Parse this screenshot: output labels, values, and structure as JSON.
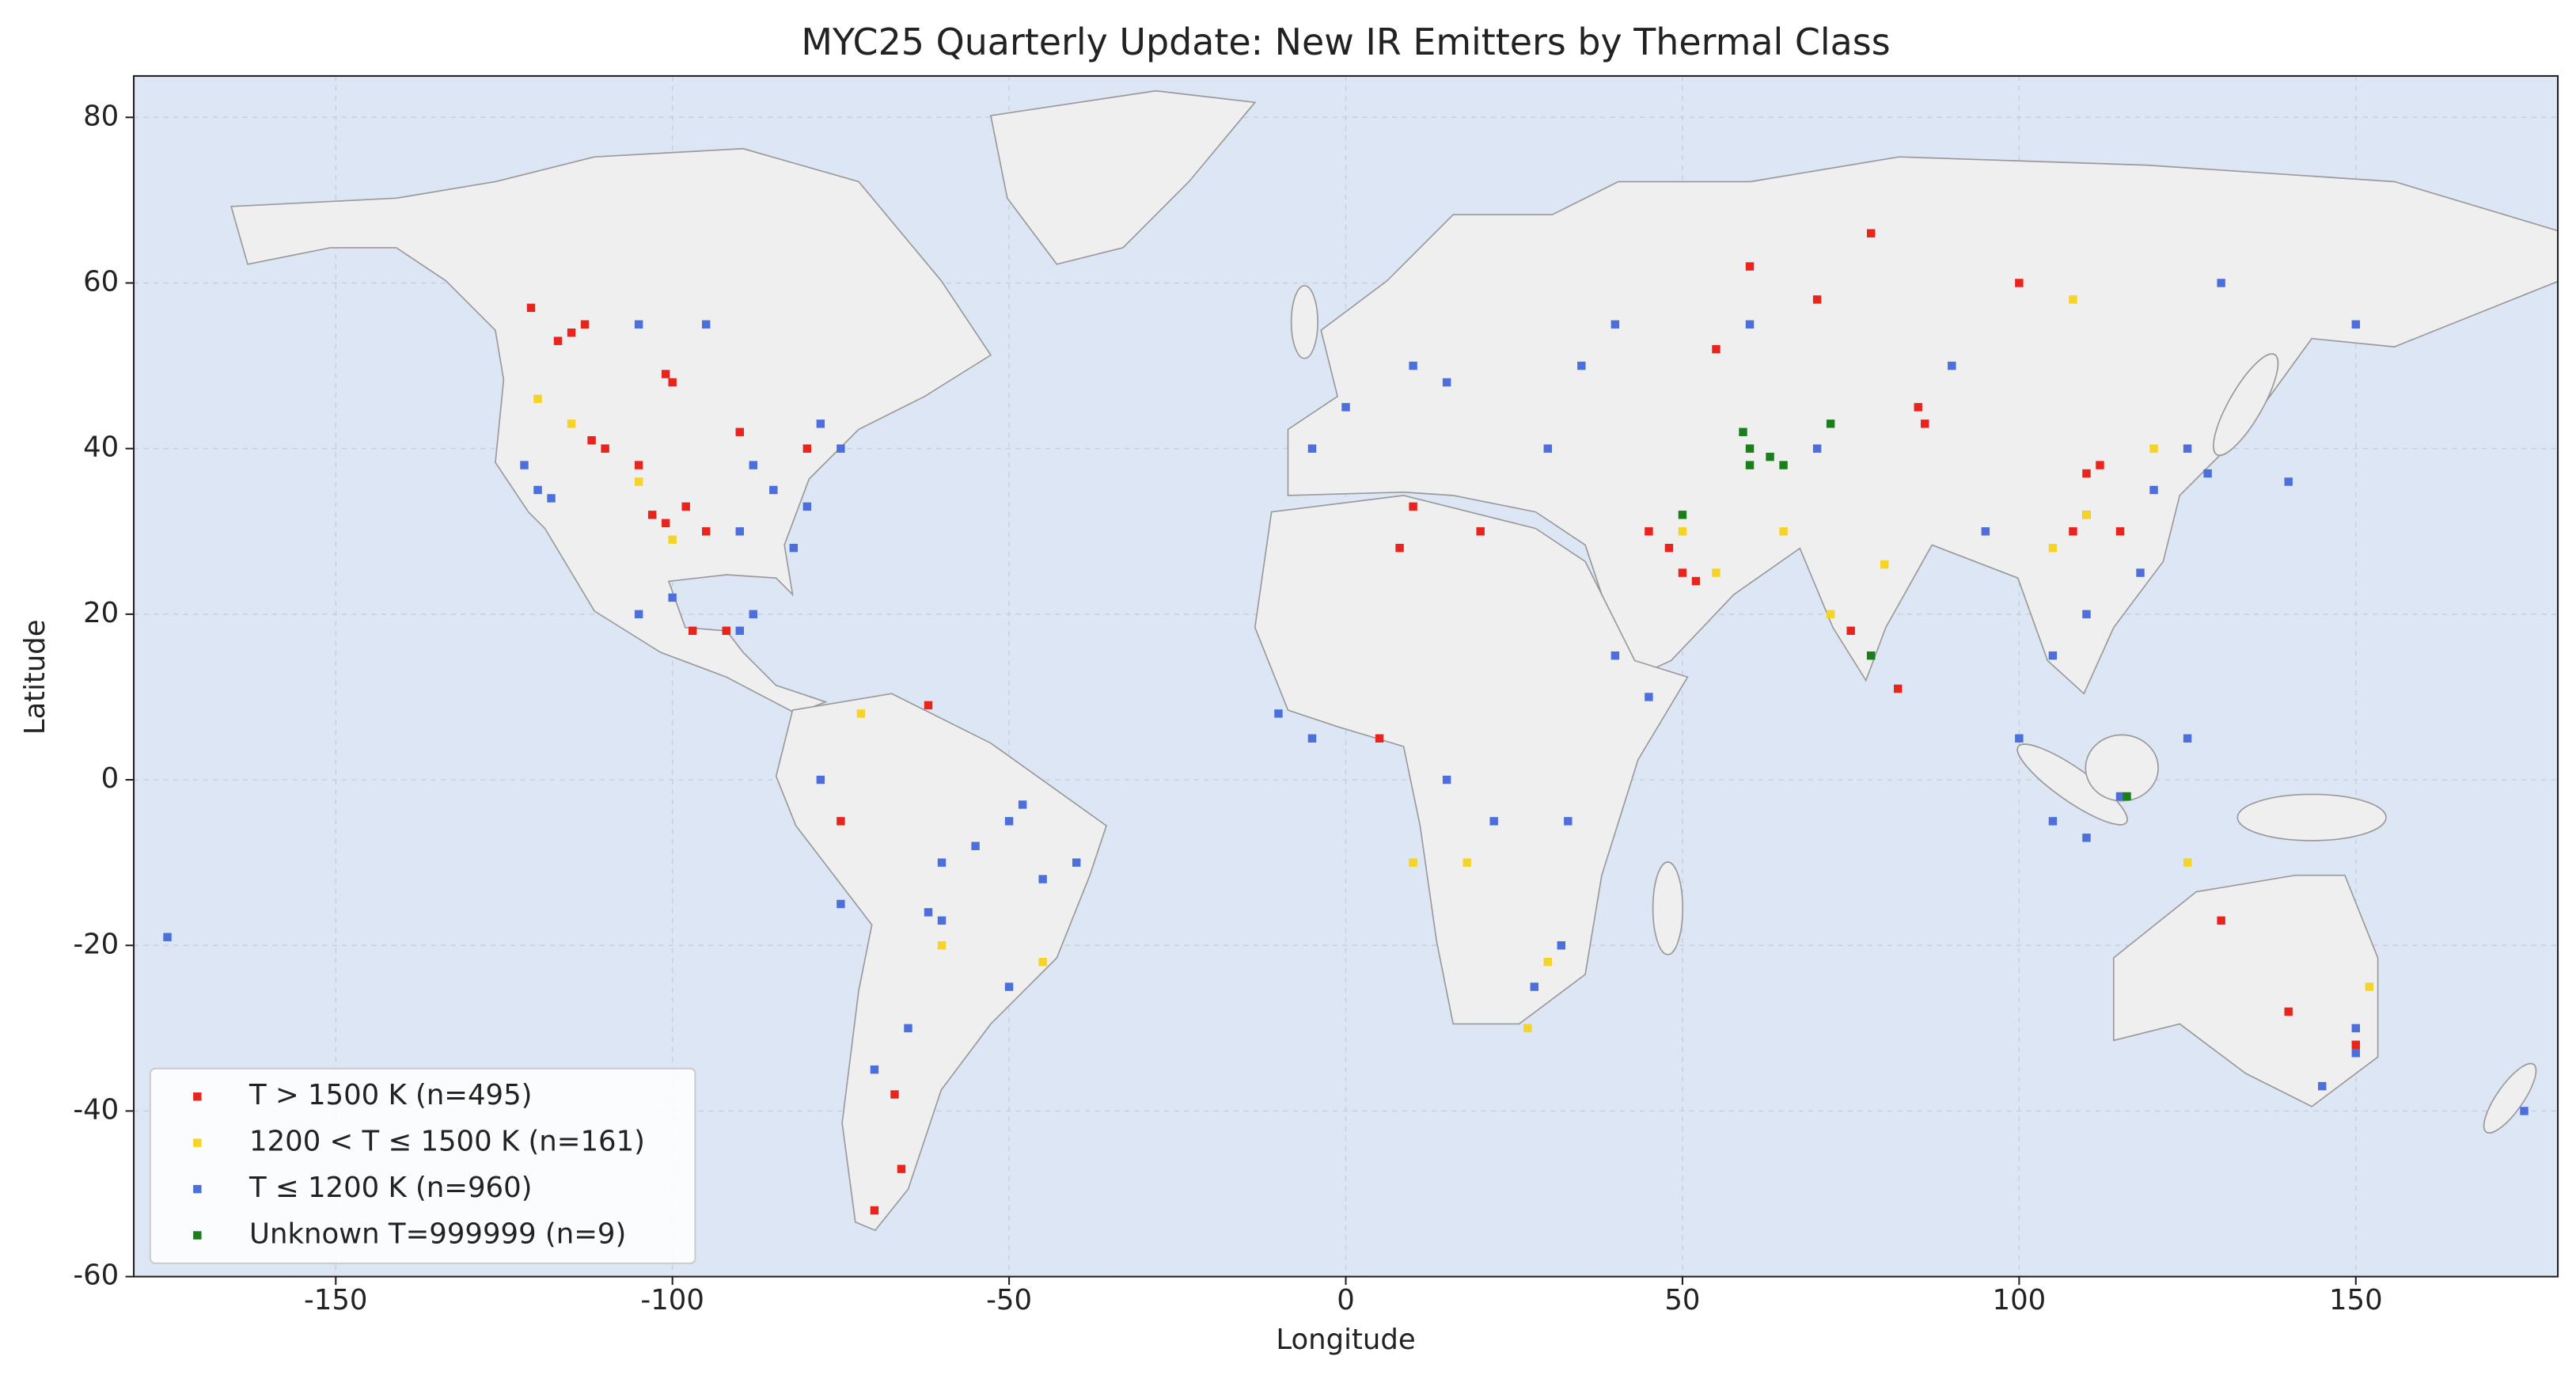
{
  "chart_data": {
    "type": "scatter",
    "title": "MYC25 Quarterly Update: New IR Emitters by Thermal Class",
    "x_label": "Longitude",
    "y_label": "Latitude",
    "xlim": [
      -180,
      180
    ],
    "ylim": [
      -60,
      85
    ],
    "xticks": [
      -150,
      -100,
      -50,
      0,
      50,
      100,
      150
    ],
    "yticks": [
      -60,
      -40,
      -20,
      0,
      20,
      40,
      60,
      80
    ],
    "grid": true,
    "legend": "lower left",
    "series": [
      {
        "name": "T > 1500 K (n=495)",
        "color": "#e8241c",
        "x": [
          -115,
          -113,
          -117,
          -121,
          -100,
          -101,
          -103,
          -101,
          -98,
          -95,
          -110,
          -112,
          -105,
          -97,
          -92,
          -75,
          -67,
          -70,
          -66,
          -62,
          5,
          8,
          10,
          20,
          45,
          48,
          50,
          52,
          55,
          70,
          78,
          85,
          86,
          100,
          108,
          110,
          110,
          112,
          115,
          140,
          150,
          130,
          82,
          75,
          60,
          -90,
          -80
        ],
        "y": [
          54,
          55,
          53,
          57,
          48,
          49,
          32,
          31,
          33,
          30,
          40,
          41,
          38,
          18,
          18,
          -5,
          -38,
          -52,
          -47,
          9,
          5,
          28,
          33,
          30,
          30,
          28,
          25,
          24,
          52,
          58,
          66,
          45,
          43,
          60,
          30,
          32,
          37,
          38,
          30,
          -28,
          -32,
          -17,
          11,
          18,
          62,
          42,
          40
        ]
      },
      {
        "name": "1200 < T ≤ 1500 K (n=161)",
        "color": "#f5d327",
        "x": [
          -115,
          -120,
          -105,
          -100,
          -60,
          -45,
          10,
          18,
          27,
          30,
          50,
          55,
          65,
          72,
          80,
          105,
          108,
          110,
          120,
          125,
          152,
          -72
        ],
        "y": [
          43,
          46,
          36,
          29,
          -20,
          -22,
          -10,
          -10,
          -30,
          -22,
          30,
          25,
          30,
          20,
          26,
          28,
          58,
          32,
          40,
          -10,
          -25,
          8
        ]
      },
      {
        "name": "T ≤ 1200 K (n=960)",
        "color": "#4c6fdb",
        "x": [
          -122,
          -120,
          -118,
          -105,
          -95,
          -85,
          -80,
          -82,
          -90,
          -88,
          -75,
          -78,
          -90,
          -88,
          -100,
          -105,
          -60,
          -55,
          -50,
          -48,
          -62,
          -60,
          -45,
          -40,
          -70,
          -65,
          -50,
          -175,
          -5,
          0,
          10,
          15,
          35,
          40,
          40,
          45,
          33,
          28,
          32,
          22,
          15,
          -5,
          -10,
          30,
          70,
          90,
          95,
          105,
          110,
          118,
          120,
          125,
          128,
          140,
          100,
          105,
          110,
          115,
          125,
          150,
          150,
          145,
          175,
          130,
          150,
          60,
          -75,
          -78
        ],
        "y": [
          38,
          35,
          34,
          55,
          55,
          35,
          33,
          28,
          30,
          38,
          40,
          43,
          18,
          20,
          22,
          20,
          -10,
          -8,
          -5,
          -3,
          -16,
          -17,
          -12,
          -10,
          -35,
          -30,
          -25,
          -19,
          40,
          45,
          50,
          48,
          50,
          55,
          15,
          10,
          -5,
          -25,
          -20,
          -5,
          0,
          5,
          8,
          40,
          40,
          50,
          30,
          15,
          20,
          25,
          35,
          40,
          37,
          36,
          5,
          -5,
          -7,
          -2,
          5,
          -30,
          -33,
          -37,
          -40,
          60,
          55,
          55,
          -15,
          0
        ]
      },
      {
        "name": "Unknown T=999999 (n=9)",
        "color": "#1a7f1a",
        "x": [
          59,
          60,
          63,
          65,
          72,
          50,
          78,
          116,
          60
        ],
        "y": [
          42,
          38,
          39,
          38,
          43,
          32,
          15,
          -2,
          40
        ]
      }
    ]
  }
}
